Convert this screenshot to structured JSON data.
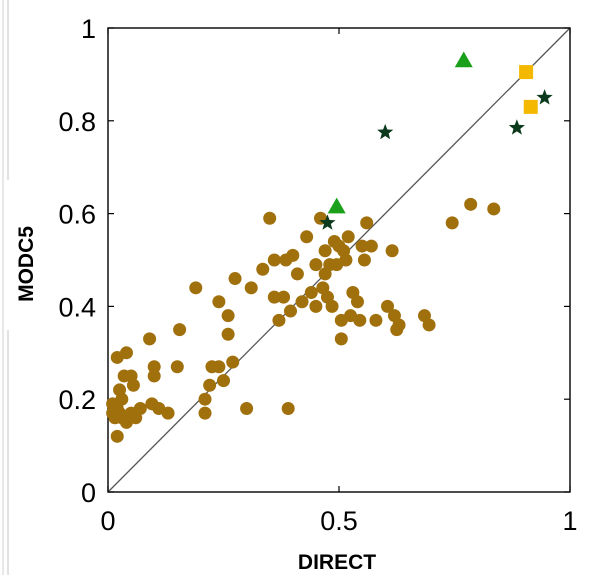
{
  "chart_data": {
    "type": "scatter",
    "xlabel": "DIRECT",
    "ylabel": "MODC5",
    "xlim": [
      0,
      1
    ],
    "ylim": [
      0,
      1
    ],
    "x_ticks": [
      "0",
      "0.5",
      "1"
    ],
    "y_ticks": [
      "0",
      "0.2",
      "0.4",
      "0.6",
      "0.8",
      "1"
    ],
    "reference_line": {
      "from": [
        0,
        0
      ],
      "to": [
        1,
        1
      ],
      "color": "#555555"
    },
    "grid": false,
    "legend": "none",
    "series": [
      {
        "marker": "circle",
        "color": "#a0700d",
        "points": [
          [
            0.01,
            0.19
          ],
          [
            0.01,
            0.17
          ],
          [
            0.015,
            0.16
          ],
          [
            0.02,
            0.18
          ],
          [
            0.025,
            0.17
          ],
          [
            0.02,
            0.12
          ],
          [
            0.03,
            0.16
          ],
          [
            0.03,
            0.2
          ],
          [
            0.04,
            0.15
          ],
          [
            0.05,
            0.17
          ],
          [
            0.06,
            0.16
          ],
          [
            0.07,
            0.18
          ],
          [
            0.025,
            0.22
          ],
          [
            0.02,
            0.29
          ],
          [
            0.035,
            0.25
          ],
          [
            0.04,
            0.3
          ],
          [
            0.05,
            0.25
          ],
          [
            0.055,
            0.23
          ],
          [
            0.09,
            0.33
          ],
          [
            0.1,
            0.27
          ],
          [
            0.095,
            0.19
          ],
          [
            0.1,
            0.25
          ],
          [
            0.11,
            0.18
          ],
          [
            0.13,
            0.17
          ],
          [
            0.155,
            0.35
          ],
          [
            0.15,
            0.27
          ],
          [
            0.19,
            0.44
          ],
          [
            0.21,
            0.17
          ],
          [
            0.21,
            0.2
          ],
          [
            0.22,
            0.23
          ],
          [
            0.225,
            0.27
          ],
          [
            0.24,
            0.27
          ],
          [
            0.24,
            0.41
          ],
          [
            0.25,
            0.24
          ],
          [
            0.26,
            0.34
          ],
          [
            0.26,
            0.38
          ],
          [
            0.27,
            0.28
          ],
          [
            0.275,
            0.46
          ],
          [
            0.3,
            0.18
          ],
          [
            0.31,
            0.44
          ],
          [
            0.335,
            0.48
          ],
          [
            0.35,
            0.59
          ],
          [
            0.36,
            0.5
          ],
          [
            0.36,
            0.42
          ],
          [
            0.37,
            0.37
          ],
          [
            0.38,
            0.42
          ],
          [
            0.385,
            0.5
          ],
          [
            0.39,
            0.18
          ],
          [
            0.395,
            0.39
          ],
          [
            0.4,
            0.51
          ],
          [
            0.41,
            0.47
          ],
          [
            0.42,
            0.41
          ],
          [
            0.43,
            0.55
          ],
          [
            0.44,
            0.43
          ],
          [
            0.45,
            0.49
          ],
          [
            0.45,
            0.4
          ],
          [
            0.46,
            0.59
          ],
          [
            0.465,
            0.44
          ],
          [
            0.47,
            0.47
          ],
          [
            0.47,
            0.52
          ],
          [
            0.475,
            0.42
          ],
          [
            0.48,
            0.49
          ],
          [
            0.485,
            0.4
          ],
          [
            0.49,
            0.54
          ],
          [
            0.495,
            0.49
          ],
          [
            0.5,
            0.53
          ],
          [
            0.505,
            0.33
          ],
          [
            0.505,
            0.37
          ],
          [
            0.51,
            0.52
          ],
          [
            0.515,
            0.5
          ],
          [
            0.52,
            0.55
          ],
          [
            0.525,
            0.38
          ],
          [
            0.53,
            0.43
          ],
          [
            0.54,
            0.41
          ],
          [
            0.545,
            0.37
          ],
          [
            0.55,
            0.53
          ],
          [
            0.555,
            0.5
          ],
          [
            0.56,
            0.58
          ],
          [
            0.57,
            0.53
          ],
          [
            0.58,
            0.37
          ],
          [
            0.605,
            0.4
          ],
          [
            0.615,
            0.52
          ],
          [
            0.62,
            0.38
          ],
          [
            0.625,
            0.35
          ],
          [
            0.63,
            0.36
          ],
          [
            0.685,
            0.38
          ],
          [
            0.695,
            0.36
          ],
          [
            0.745,
            0.58
          ],
          [
            0.785,
            0.62
          ],
          [
            0.835,
            0.61
          ]
        ]
      },
      {
        "marker": "triangle",
        "color": "#1aa01a",
        "points": [
          [
            0.495,
            0.615
          ],
          [
            0.77,
            0.93
          ]
        ]
      },
      {
        "marker": "square",
        "color": "#f4b800",
        "points": [
          [
            0.905,
            0.905
          ],
          [
            0.915,
            0.83
          ]
        ]
      },
      {
        "marker": "star",
        "color": "#0c3a1c",
        "points": [
          [
            0.475,
            0.58
          ],
          [
            0.6,
            0.775
          ],
          [
            0.885,
            0.785
          ],
          [
            0.945,
            0.85
          ]
        ]
      }
    ]
  }
}
